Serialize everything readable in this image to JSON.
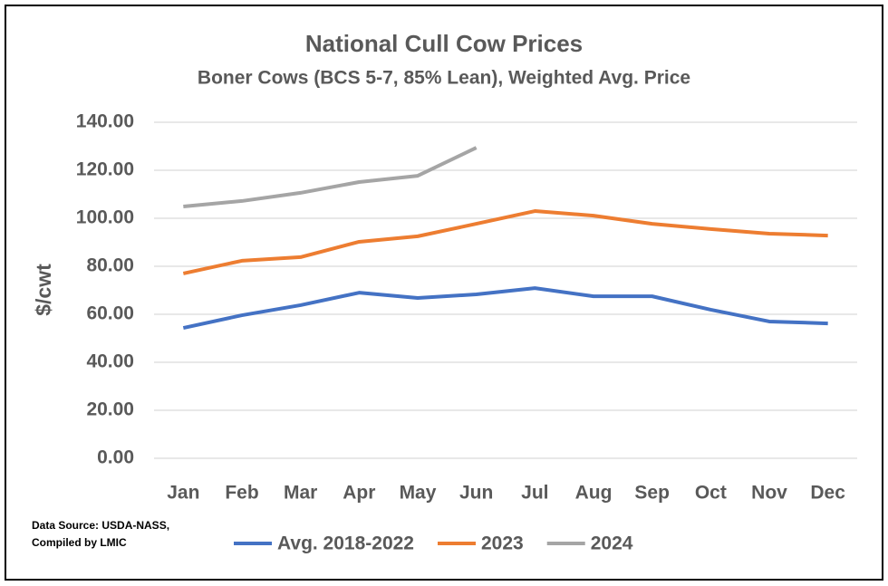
{
  "chart_data": {
    "type": "line",
    "title": "National Cull Cow Prices",
    "subtitle": "Boner Cows (BCS 5-7, 85% Lean), Weighted Avg. Price",
    "y_label": "$/cwt",
    "source": [
      "Data Source: USDA-NASS,",
      "Compiled by LMIC"
    ],
    "categories": [
      "Jan",
      "Feb",
      "Mar",
      "Apr",
      "May",
      "Jun",
      "Jul",
      "Aug",
      "Sep",
      "Oct",
      "Nov",
      "Dec"
    ],
    "series": [
      {
        "name": "Avg. 2018-2022",
        "color": "#4472c4",
        "values": [
          54.3,
          59.6,
          63.8,
          69,
          66.8,
          68.3,
          70.9,
          67.5,
          67.5,
          61.9,
          57,
          56.2
        ]
      },
      {
        "name": "2023",
        "color": "#ed7d31",
        "values": [
          77,
          82.3,
          83.8,
          90.2,
          92.5,
          97.7,
          103,
          101.1,
          97.7,
          95.5,
          93.6,
          92.8
        ]
      },
      {
        "name": "2024",
        "color": "#a5a5a5",
        "values": [
          104.9,
          107.2,
          110.6,
          115.1,
          117.7,
          129.4,
          null,
          null,
          null,
          null,
          null,
          null
        ]
      }
    ],
    "ylim": [
      0,
      140
    ],
    "yticks": [
      {
        "value": 0,
        "label": "0.00"
      },
      {
        "value": 20,
        "label": "20.00"
      },
      {
        "value": 40,
        "label": "40.00"
      },
      {
        "value": 60,
        "label": "60.00"
      },
      {
        "value": 80,
        "label": "80.00"
      },
      {
        "value": 100,
        "label": "100.00"
      },
      {
        "value": 120,
        "label": "120.00"
      },
      {
        "value": 140,
        "label": "140.00"
      }
    ],
    "grid": true,
    "legend": "bottom"
  }
}
